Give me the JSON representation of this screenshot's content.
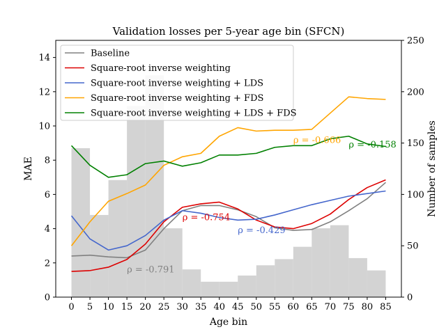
{
  "chart_data": {
    "type": "line",
    "title": "Validation losses per 5-year age bin (SFCN)",
    "xlabel": "Age bin",
    "ylabel": "MAE",
    "y2label": "Number of samples",
    "x": [
      0,
      5,
      10,
      15,
      20,
      25,
      30,
      35,
      40,
      45,
      50,
      55,
      60,
      65,
      70,
      75,
      80,
      85
    ],
    "xticks": [
      "0",
      "5",
      "10",
      "15",
      "20",
      "25",
      "30",
      "35",
      "40",
      "45",
      "50",
      "55",
      "60",
      "65",
      "70",
      "75",
      "80",
      "85"
    ],
    "ylim": [
      0,
      15
    ],
    "yticks": [
      "0",
      "2",
      "4",
      "6",
      "8",
      "10",
      "12",
      "14"
    ],
    "y2lim": [
      0,
      250
    ],
    "y2ticks": [
      "0",
      "50",
      "100",
      "150",
      "200",
      "250"
    ],
    "grid": false,
    "legend_position": "top-left",
    "histogram": {
      "color": "#d3d3d3",
      "bin_edges": [
        0,
        5,
        10,
        15,
        20,
        25,
        30,
        35,
        40,
        45,
        50,
        55,
        60,
        65,
        70,
        75,
        80,
        85
      ],
      "counts": [
        145,
        80,
        114,
        186,
        216,
        67,
        27,
        15,
        15,
        21,
        31,
        37,
        49,
        67,
        70,
        38,
        26
      ]
    },
    "series": [
      {
        "name": "Baseline",
        "color": "#808080",
        "values": [
          2.4,
          2.45,
          2.35,
          2.3,
          2.75,
          4.0,
          5.05,
          5.35,
          5.35,
          5.1,
          4.7,
          4.05,
          3.9,
          3.95,
          4.4,
          5.05,
          5.75,
          6.7
        ]
      },
      {
        "name": "Square-root inverse weighting",
        "color": "#dd0000",
        "values": [
          1.5,
          1.55,
          1.75,
          2.2,
          3.1,
          4.4,
          5.25,
          5.45,
          5.55,
          5.15,
          4.5,
          4.1,
          4.0,
          4.3,
          4.85,
          5.7,
          6.4,
          6.85
        ]
      },
      {
        "name": "Square-root inverse weighting + LDS",
        "color": "#4466cc",
        "values": [
          4.75,
          3.4,
          2.75,
          3.0,
          3.6,
          4.5,
          5.05,
          4.9,
          4.65,
          4.5,
          4.55,
          4.8,
          5.1,
          5.4,
          5.65,
          5.9,
          6.05,
          6.2
        ]
      },
      {
        "name": "Square-root inverse weighting + FDS",
        "color": "#ffa500",
        "values": [
          3.0,
          4.4,
          5.6,
          6.05,
          6.55,
          7.7,
          8.2,
          8.4,
          9.4,
          9.9,
          9.7,
          9.75,
          9.75,
          9.8,
          10.75,
          11.7,
          11.6,
          11.55
        ]
      },
      {
        "name": "Square-root inverse weighting + LDS + FDS",
        "color": "#008000",
        "values": [
          8.85,
          7.7,
          7.0,
          7.15,
          7.8,
          7.95,
          7.65,
          7.85,
          8.3,
          8.3,
          8.4,
          8.75,
          8.85,
          8.85,
          9.25,
          9.4,
          8.95,
          8.8
        ]
      }
    ],
    "annotations": [
      {
        "text": "ρ = -0.791",
        "x": 15,
        "y": 1.65,
        "color": "#808080"
      },
      {
        "text": "ρ = -0.754",
        "x": 30,
        "y": 4.7,
        "color": "#dd0000"
      },
      {
        "text": "ρ = -0.429",
        "x": 45,
        "y": 3.95,
        "color": "#4466cc"
      },
      {
        "text": "ρ = -0.666",
        "x": 60,
        "y": 9.2,
        "color": "#ffa500"
      },
      {
        "text": "ρ = -0.158",
        "x": 75,
        "y": 8.95,
        "color": "#008000"
      }
    ]
  }
}
